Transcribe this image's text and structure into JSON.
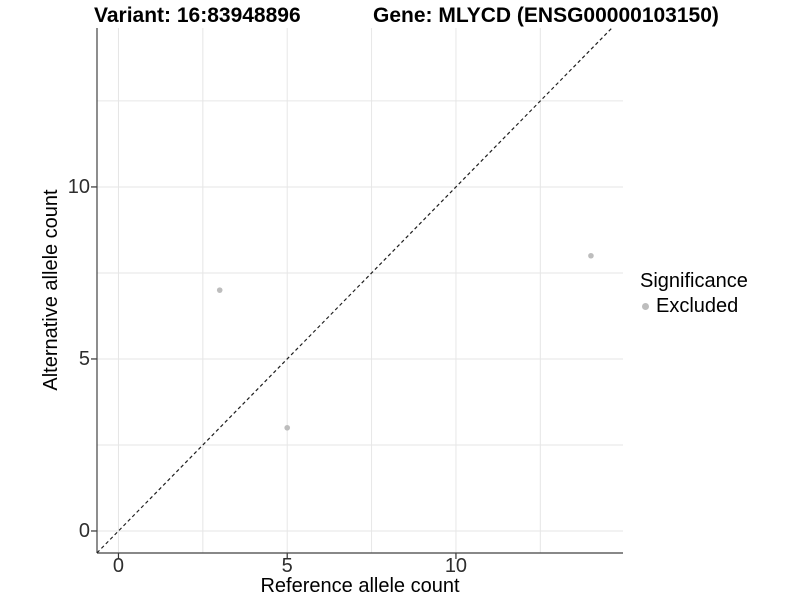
{
  "chart_data": {
    "type": "scatter",
    "titles": {
      "left": "Variant: 16:83948896",
      "right": "Gene: MLYCD (ENSG00000103150)"
    },
    "xlabel": "Reference allele count",
    "ylabel": "Alternative allele count",
    "xlim": [
      -0.636,
      14.95
    ],
    "ylim": [
      -0.64,
      14.62
    ],
    "x_ticks": [
      0,
      5,
      10
    ],
    "y_ticks": [
      0,
      5,
      10
    ],
    "x_minor_ticks": [
      2.5,
      7.5,
      12.5
    ],
    "y_minor_ticks": [
      2.5,
      7.5,
      12.5
    ],
    "grid": true,
    "reference_line": {
      "type": "identity",
      "slope": 1,
      "intercept": 0,
      "style": "dashed",
      "color": "#1f1f1f"
    },
    "series": [
      {
        "name": "Excluded",
        "marker": "circle",
        "color": "#bdbdbd",
        "points": [
          [
            3,
            7
          ],
          [
            5,
            3
          ],
          [
            14,
            8
          ]
        ]
      }
    ],
    "legend": {
      "title": "Significance",
      "position": "right",
      "items": [
        {
          "label": "Excluded",
          "color": "#bdbdbd"
        }
      ]
    },
    "colors": {
      "background": "#ffffff",
      "grid": "#e6e6e6",
      "axis_line": "#424242",
      "tick_mark": "#333333",
      "tick_text": "#2e2e2e",
      "title_text": "#000000",
      "point": "#bdbdbd"
    }
  }
}
